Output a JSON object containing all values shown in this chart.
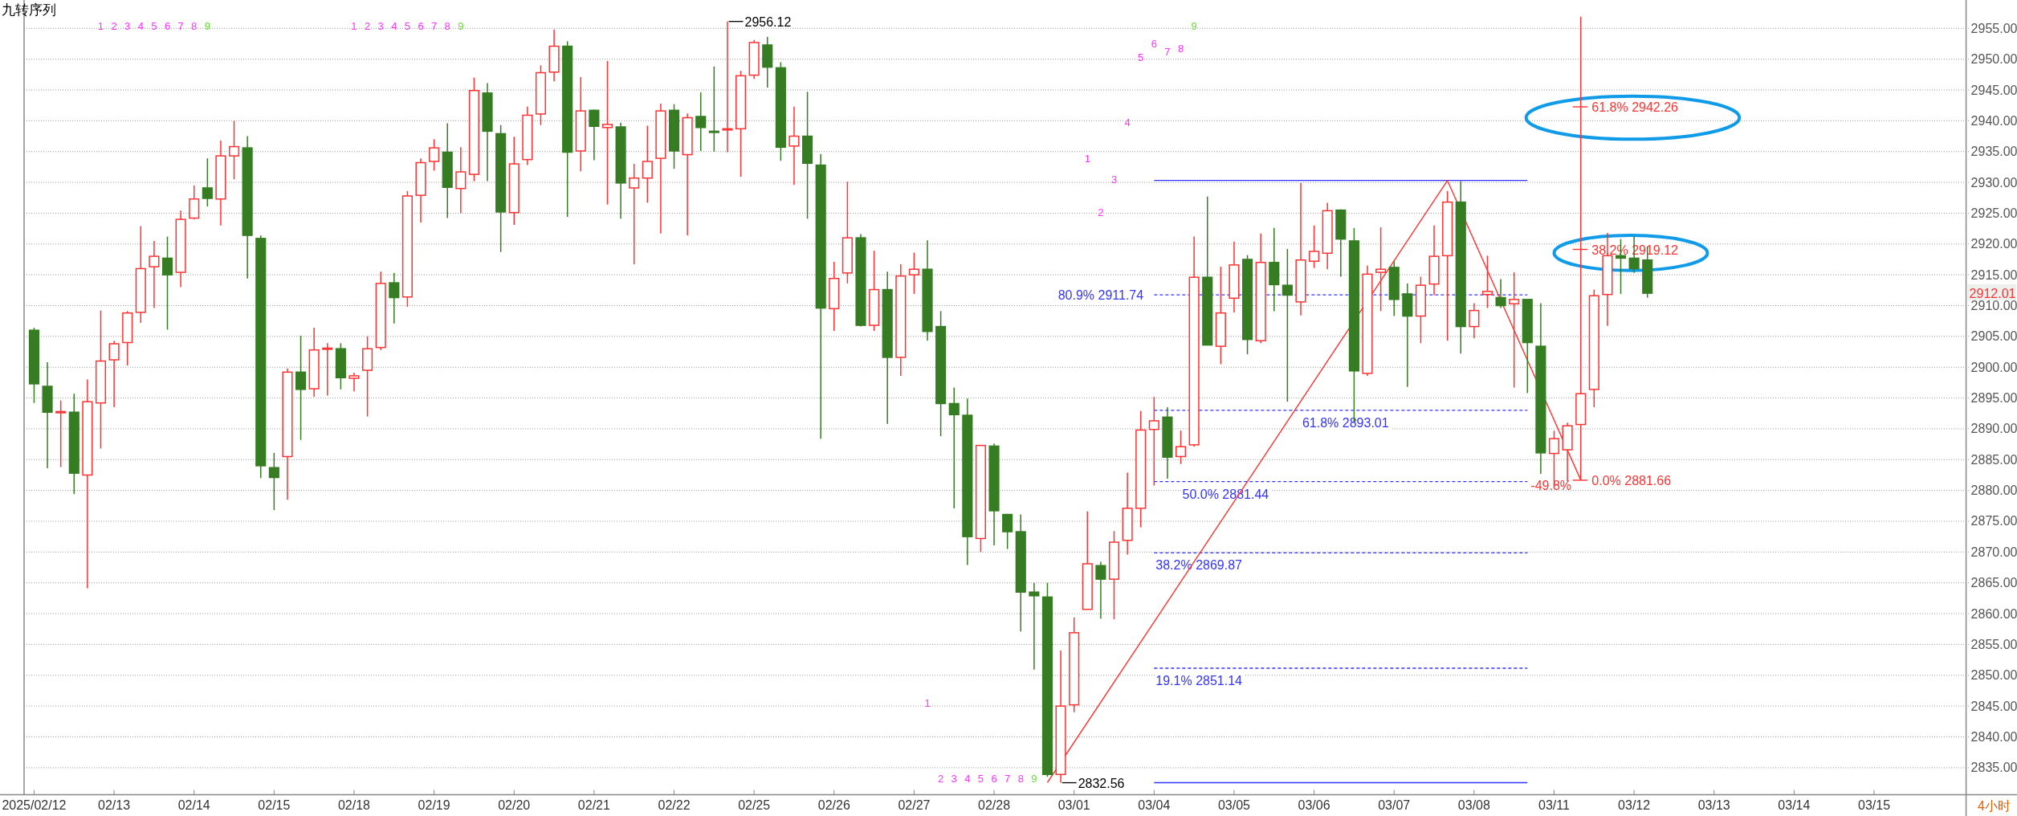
{
  "chart_data": {
    "type": "candlestick",
    "title": "九转序列",
    "categories": [
      "2025/02/12",
      null,
      null,
      null,
      null,
      null,
      "02/13",
      null,
      null,
      null,
      null,
      null,
      "02/14",
      null,
      null,
      null,
      null,
      null,
      "02/15",
      null,
      null,
      null,
      null,
      null,
      "02/18",
      null,
      null,
      null,
      null,
      null,
      "02/19",
      null,
      null,
      null,
      null,
      null,
      "02/20",
      null,
      null,
      null,
      null,
      null,
      "02/21",
      null,
      null,
      null,
      null,
      null,
      "02/22",
      null,
      null,
      null,
      null,
      null,
      "02/25",
      null,
      null,
      null,
      null,
      null,
      "02/26",
      null,
      null,
      null,
      null,
      null,
      "02/27",
      null,
      null,
      null,
      null,
      null,
      "02/28",
      null,
      null,
      null,
      null,
      null,
      "03/01",
      null,
      null,
      null,
      null,
      null,
      "03/04",
      null,
      null,
      null,
      null,
      null,
      "03/05",
      null,
      null,
      null,
      null,
      null,
      "03/06",
      null,
      null,
      null,
      null,
      null,
      "03/07",
      null,
      null,
      null,
      null,
      null,
      "03/08",
      null,
      null,
      null,
      null,
      null,
      "03/11",
      null,
      null,
      null,
      null,
      null,
      "03/12",
      null,
      null,
      null,
      null,
      null,
      "03/13",
      null,
      null,
      null,
      null,
      null,
      "03/14",
      null,
      null,
      null,
      null,
      null,
      "03/15",
      null,
      null,
      null,
      null,
      null,
      null
    ],
    "ohlc": [
      [
        2906.0,
        2906.4,
        2894.2,
        2897.3
      ],
      [
        2896.9,
        2900.8,
        2883.6,
        2892.7
      ],
      [
        2892.6,
        2894.6,
        2883.8,
        2892.8
      ],
      [
        2892.7,
        2895.7,
        2879.4,
        2882.8
      ],
      [
        2882.5,
        2898.0,
        2864.1,
        2894.4
      ],
      [
        2894.2,
        2909.2,
        2886.8,
        2901.0
      ],
      [
        2901.2,
        2904.3,
        2893.5,
        2903.8
      ],
      [
        2904.0,
        2909.1,
        2900.3,
        2908.8
      ],
      [
        2908.9,
        2922.9,
        2907.2,
        2916.0
      ],
      [
        2916.3,
        2920.5,
        2909.6,
        2918.0
      ],
      [
        2917.7,
        2921.2,
        2906.1,
        2915.0
      ],
      [
        2915.4,
        2925.4,
        2913.0,
        2924.0
      ],
      [
        2924.2,
        2929.5,
        2924.0,
        2927.3
      ],
      [
        2929.1,
        2933.9,
        2926.1,
        2927.4
      ],
      [
        2927.3,
        2936.8,
        2923.0,
        2934.3
      ],
      [
        2934.3,
        2940.0,
        2930.5,
        2935.8
      ],
      [
        2935.6,
        2937.5,
        2914.4,
        2921.4
      ],
      [
        2920.9,
        2921.4,
        2882.0,
        2884.0
      ],
      [
        2883.7,
        2886.1,
        2876.8,
        2882.1
      ],
      [
        2885.5,
        2899.8,
        2878.5,
        2899.2
      ],
      [
        2899.2,
        2905.1,
        2888.2,
        2896.4
      ],
      [
        2896.5,
        2906.4,
        2895.2,
        2902.8
      ],
      [
        2903.0,
        2903.9,
        2895.4,
        2903.1
      ],
      [
        2903.0,
        2903.9,
        2896.4,
        2898.3
      ],
      [
        2898.2,
        2899.1,
        2896.1,
        2898.6
      ],
      [
        2899.5,
        2905.0,
        2892.0,
        2903.0
      ],
      [
        2903.2,
        2915.5,
        2902.8,
        2913.6
      ],
      [
        2913.7,
        2915.3,
        2907.1,
        2911.3
      ],
      [
        2911.4,
        2928.6,
        2909.8,
        2927.8
      ],
      [
        2927.9,
        2933.9,
        2923.5,
        2933.2
      ],
      [
        2933.4,
        2937.0,
        2931.9,
        2935.6
      ],
      [
        2934.9,
        2939.6,
        2924.2,
        2929.2
      ],
      [
        2929.0,
        2935.7,
        2925.0,
        2931.7
      ],
      [
        2931.3,
        2947.0,
        2930.2,
        2944.9
      ],
      [
        2944.5,
        2946.1,
        2930.2,
        2938.3
      ],
      [
        2937.9,
        2939.3,
        2918.7,
        2925.2
      ],
      [
        2925.1,
        2937.4,
        2923.1,
        2933.0
      ],
      [
        2933.7,
        2942.3,
        2932.8,
        2940.9
      ],
      [
        2941.1,
        2949.0,
        2939.3,
        2947.8
      ],
      [
        2947.9,
        2954.8,
        2946.4,
        2952.1
      ],
      [
        2952.1,
        2952.9,
        2924.4,
        2934.9
      ],
      [
        2935.1,
        2947.1,
        2931.8,
        2941.6
      ],
      [
        2941.7,
        2941.8,
        2933.6,
        2939.1
      ],
      [
        2938.9,
        2949.7,
        2926.4,
        2939.4
      ],
      [
        2939.0,
        2939.7,
        2924.1,
        2929.9
      ],
      [
        2929.1,
        2933.0,
        2916.7,
        2930.7
      ],
      [
        2930.7,
        2939.2,
        2926.7,
        2933.4
      ],
      [
        2933.9,
        2942.8,
        2921.7,
        2941.6
      ],
      [
        2941.7,
        2942.7,
        2932.2,
        2935.1
      ],
      [
        2934.5,
        2941.2,
        2921.4,
        2940.5
      ],
      [
        2940.7,
        2944.6,
        2935.1,
        2938.9
      ],
      [
        2938.3,
        2948.8,
        2935.0,
        2938.2
      ],
      [
        2938.6,
        2956.12,
        2934.9,
        2938.7
      ],
      [
        2938.7,
        2948.1,
        2930.9,
        2947.3
      ],
      [
        2947.4,
        2953.1,
        2946.8,
        2952.7
      ],
      [
        2952.3,
        2953.6,
        2945.4,
        2948.7
      ],
      [
        2948.6,
        2949.5,
        2933.5,
        2935.7
      ],
      [
        2935.9,
        2942.3,
        2929.6,
        2937.5
      ],
      [
        2937.5,
        2944.7,
        2924.1,
        2933.1
      ],
      [
        2932.8,
        2934.6,
        2888.4,
        2909.6
      ],
      [
        2909.5,
        2917.1,
        2905.9,
        2914.4
      ],
      [
        2915.3,
        2930.1,
        2913.6,
        2921.0
      ],
      [
        2921.0,
        2921.6,
        2906.6,
        2906.8
      ],
      [
        2906.8,
        2918.9,
        2905.9,
        2912.6
      ],
      [
        2912.6,
        2915.5,
        2890.8,
        2901.6
      ],
      [
        2901.6,
        2916.7,
        2898.6,
        2914.8
      ],
      [
        2915.0,
        2918.6,
        2911.9,
        2915.9
      ],
      [
        2915.9,
        2920.6,
        2904.3,
        2905.8
      ],
      [
        2906.6,
        2909.1,
        2888.8,
        2894.1
      ],
      [
        2894.1,
        2896.7,
        2877.1,
        2892.3
      ],
      [
        2892.2,
        2894.9,
        2867.9,
        2872.5
      ],
      [
        2872.2,
        2887.4,
        2870.0,
        2887.3
      ],
      [
        2887.2,
        2887.6,
        2871.1,
        2876.7
      ],
      [
        2876.1,
        2876.2,
        2870.5,
        2873.3
      ],
      [
        2873.3,
        2876.1,
        2857.1,
        2863.5
      ],
      [
        2863.5,
        2865.0,
        2850.9,
        2862.9
      ],
      [
        2862.7,
        2865.0,
        2833.5,
        2833.9
      ],
      [
        2833.9,
        2854.0,
        2832.56,
        2845.0
      ],
      [
        2845.2,
        2859.4,
        2844.0,
        2856.9
      ],
      [
        2860.7,
        2876.6,
        2860.7,
        2868.1
      ],
      [
        2867.8,
        2868.4,
        2859.2,
        2865.6
      ],
      [
        2865.6,
        2873.4,
        2859.1,
        2871.6
      ],
      [
        2871.9,
        2882.9,
        2869.6,
        2877.1
      ],
      [
        2877.1,
        2892.9,
        2874.0,
        2889.8
      ],
      [
        2889.9,
        2895.2,
        2880.8,
        2891.3
      ],
      [
        2891.9,
        2893.5,
        2881.9,
        2885.4
      ],
      [
        2885.5,
        2889.7,
        2884.3,
        2887.1
      ],
      [
        2887.4,
        2921.2,
        2887.1,
        2914.6
      ],
      [
        2914.6,
        2927.7,
        2903.6,
        2903.6
      ],
      [
        2903.4,
        2916.3,
        2900.5,
        2908.8
      ],
      [
        2911.2,
        2920.4,
        2908.9,
        2916.6
      ],
      [
        2917.5,
        2918.2,
        2902.1,
        2904.5
      ],
      [
        2904.3,
        2921.7,
        2903.9,
        2917.0
      ],
      [
        2917.0,
        2922.6,
        2909.1,
        2913.4
      ],
      [
        2913.3,
        2919.2,
        2894.4,
        2911.7
      ],
      [
        2910.6,
        2929.9,
        2908.4,
        2917.4
      ],
      [
        2917.2,
        2923.0,
        2916.1,
        2918.8
      ],
      [
        2918.5,
        2926.7,
        2915.9,
        2925.4
      ],
      [
        2925.5,
        2925.6,
        2914.7,
        2920.8
      ],
      [
        2920.5,
        2922.6,
        2891.2,
        2899.4
      ],
      [
        2899.0,
        2916.5,
        2898.6,
        2915.1
      ],
      [
        2915.4,
        2922.7,
        2909.1,
        2915.9
      ],
      [
        2916.2,
        2917.2,
        2908.3,
        2911.0
      ],
      [
        2911.9,
        2913.6,
        2896.8,
        2908.3
      ],
      [
        2908.3,
        2914.7,
        2903.9,
        2913.3
      ],
      [
        2913.5,
        2923.0,
        2911.7,
        2918.0
      ],
      [
        2918.1,
        2928.6,
        2904.3,
        2926.8
      ],
      [
        2926.8,
        2930.2,
        2902.2,
        2906.6
      ],
      [
        2906.6,
        2910.4,
        2904.7,
        2909.2
      ],
      [
        2911.8,
        2918.1,
        2909.6,
        2912.3
      ],
      [
        2911.3,
        2914.3,
        2909.6,
        2910.0
      ],
      [
        2910.3,
        2915.4,
        2896.7,
        2911.0
      ],
      [
        2911.0,
        2911.0,
        2895.8,
        2904.0
      ],
      [
        2903.4,
        2910.4,
        2882.7,
        2886.1
      ],
      [
        2886.0,
        2889.7,
        2880.6,
        2888.4
      ],
      [
        2886.6,
        2891.0,
        2881.5,
        2890.5
      ],
      [
        2890.7,
        2956.9,
        2881.66,
        2895.7
      ],
      [
        2896.4,
        2912.6,
        2893.5,
        2911.6
      ],
      [
        2911.8,
        2921.8,
        2906.7,
        2918.1
      ],
      [
        2918.1,
        2920.8,
        2911.9,
        2917.7
      ],
      [
        2917.7,
        2921.2,
        2915.3,
        2916.0
      ],
      [
        2917.4,
        2919.6,
        2911.3,
        2912.01
      ],
      null,
      null,
      null,
      null,
      null,
      null,
      null,
      null,
      null,
      null,
      null,
      null,
      null,
      null,
      null,
      null,
      null,
      null,
      null,
      null,
      null,
      null,
      null
    ],
    "colors": [
      "#367c22",
      "#367c22",
      "#ff3333",
      "#367c22",
      "#ff3333",
      "#ff3333",
      "#ff3333",
      "#ff3333",
      "#ff3333",
      "#ff3333",
      "#367c22",
      "#ff3333",
      "#ff3333",
      "#367c22",
      "#ff3333",
      "#ff3333",
      "#367c22",
      "#367c22",
      "#367c22",
      "#ff3333",
      "#367c22",
      "#ff3333",
      "#ff3333",
      "#367c22",
      "#ff3333",
      "#ff3333",
      "#ff3333",
      "#367c22",
      "#ff3333",
      "#ff3333",
      "#ff3333",
      "#367c22",
      "#ff3333",
      "#ff3333",
      "#367c22",
      "#367c22",
      "#ff3333",
      "#ff3333",
      "#ff3333",
      "#ff3333",
      "#367c22",
      "#ff3333",
      "#367c22",
      "#ff3333",
      "#367c22",
      "#ff3333",
      "#ff3333",
      "#ff3333",
      "#367c22",
      "#ff3333",
      "#367c22",
      "#367c22",
      "#ff3333",
      "#ff3333",
      "#ff3333",
      "#367c22",
      "#367c22",
      "#ff3333",
      "#367c22",
      "#367c22",
      "#ff3333",
      "#ff3333",
      "#367c22",
      "#ff3333",
      "#367c22",
      "#ff3333",
      "#ff3333",
      "#367c22",
      "#367c22",
      "#367c22",
      "#367c22",
      "#ff3333",
      "#367c22",
      "#367c22",
      "#367c22",
      "#367c22",
      "#367c22",
      "#ff3333",
      "#ff3333",
      "#ff3333",
      "#367c22",
      "#ff3333",
      "#ff3333",
      "#ff3333",
      "#ff3333",
      "#367c22",
      "#ff3333",
      "#ff3333",
      "#367c22",
      "#ff3333",
      "#ff3333",
      "#367c22",
      "#ff3333",
      "#367c22",
      "#367c22",
      "#ff3333",
      "#ff3333",
      "#ff3333",
      "#367c22",
      "#367c22",
      "#ff3333",
      "#ff3333",
      "#367c22",
      "#367c22",
      "#ff3333",
      "#ff3333",
      "#ff3333",
      "#367c22",
      "#ff3333",
      "#ff3333",
      "#367c22",
      "#ff3333",
      "#367c22",
      "#367c22",
      "#ff3333",
      "#ff3333",
      "#ff3333",
      "#ff3333",
      "#ff3333",
      "#367c22",
      "#367c22",
      "#367c22",
      null,
      null,
      null,
      null,
      null,
      null,
      null,
      null,
      null,
      null,
      null,
      null,
      null,
      null,
      null,
      null,
      null,
      null,
      null,
      null,
      null,
      null,
      null
    ],
    "ylim": [
      2830.6,
      2959.6
    ],
    "yticks": [
      {
        "value": 2835,
        "label": "2835.00"
      },
      {
        "value": 2840,
        "label": "2840.00"
      },
      {
        "value": 2845,
        "label": "2845.00"
      },
      {
        "value": 2850,
        "label": "2850.00"
      },
      {
        "value": 2855,
        "label": "2855.00"
      },
      {
        "value": 2860,
        "label": "2860.00"
      },
      {
        "value": 2865,
        "label": "2865.00"
      },
      {
        "value": 2870,
        "label": "2870.00"
      },
      {
        "value": 2875,
        "label": "2875.00"
      },
      {
        "value": 2880,
        "label": "2880.00"
      },
      {
        "value": 2885,
        "label": "2885.00"
      },
      {
        "value": 2890,
        "label": "2890.00"
      },
      {
        "value": 2895,
        "label": "2895.00"
      },
      {
        "value": 2900,
        "label": "2900.00"
      },
      {
        "value": 2905,
        "label": "2905.00"
      },
      {
        "value": 2910,
        "label": "2910.00"
      },
      {
        "value": 2915,
        "label": "2915.00"
      },
      {
        "value": 2920,
        "label": "2920.00"
      },
      {
        "value": 2925,
        "label": "2925.00"
      },
      {
        "value": 2930,
        "label": "2930.00"
      },
      {
        "value": 2935,
        "label": "2935.00"
      },
      {
        "value": 2940,
        "label": "2940.00"
      },
      {
        "value": 2945,
        "label": "2945.00"
      },
      {
        "value": 2950,
        "label": "2950.00"
      },
      {
        "value": 2955,
        "label": "2955.00"
      }
    ],
    "grid": "y",
    "series": [
      {
        "type": "line",
        "values": [
          null,
          null,
          null,
          null,
          null,
          null,
          null,
          null,
          null,
          null,
          null,
          null,
          null,
          null,
          null,
          null,
          null,
          null,
          null,
          null,
          null,
          null,
          null,
          null,
          null,
          null,
          null,
          null,
          null,
          null,
          null,
          null,
          null,
          null,
          null,
          null,
          null,
          null,
          null,
          null,
          null,
          null,
          null,
          null,
          null,
          null,
          null,
          null,
          null,
          null,
          null,
          null,
          null,
          null,
          null,
          null,
          null,
          null,
          null,
          null,
          null,
          null,
          null,
          null,
          null,
          null,
          null,
          null,
          null,
          null,
          null,
          null,
          null,
          null,
          null,
          null,
          2832.6,
          null,
          null,
          null,
          null,
          null,
          null,
          null,
          null,
          null,
          null,
          null,
          null,
          null,
          null,
          null,
          null,
          null,
          null,
          null,
          null,
          null,
          null,
          null,
          null,
          null,
          null,
          null,
          null,
          null,
          2930.3,
          null,
          null,
          null,
          null,
          null,
          null,
          null,
          null,
          null,
          2881.7,
          null,
          null,
          null,
          null,
          null,
          null,
          null,
          null,
          null,
          null,
          null,
          null,
          null,
          null,
          null,
          null,
          null,
          null,
          null,
          null,
          null,
          null,
          null,
          null,
          null,
          null,
          null,
          null
        ],
        "color": "#ff3333",
        "line_style": "solid"
      }
    ],
    "ref_lines": [
      {
        "axis": "y",
        "value": 2930.32,
        "label": null,
        "color": "#3333ff",
        "line_style": "solid"
      },
      {
        "axis": "y",
        "value": 2911.74,
        "label": "80.9% 2911.74",
        "color": "#3333ff",
        "line_style": "dashed"
      },
      {
        "axis": "y",
        "value": 2893.01,
        "label": "61.8% 2893.01",
        "color": "#3333ff",
        "line_style": "dashed"
      },
      {
        "axis": "y",
        "value": 2881.44,
        "label": "50.0% 2881.44",
        "color": "#3333ff",
        "line_style": "dashed"
      },
      {
        "axis": "y",
        "value": 2869.87,
        "label": "38.2% 2869.87",
        "color": "#3333ff",
        "line_style": "dashed"
      },
      {
        "axis": "y",
        "value": 2851.14,
        "label": "19.1% 2851.14",
        "color": "#3333ff",
        "line_style": "dashed"
      },
      {
        "axis": "y",
        "value": 2832.56,
        "label": null,
        "color": "#3333ff",
        "line_style": "solid"
      },
      {
        "axis": "y",
        "value": 2942.26,
        "label": "61.8% 2942.26",
        "color": "#ff3333",
        "line_style": "solid"
      },
      {
        "axis": "y",
        "value": 2919.12,
        "label": "38.2% 2919.12",
        "color": "#ff3333",
        "line_style": "solid"
      },
      {
        "axis": "y",
        "value": 2881.66,
        "label": "0.0% 2881.66",
        "color": "#ff3333",
        "line_style": "solid"
      }
    ],
    "annotations": [
      "1",
      "2",
      "3",
      "4",
      "5",
      "6",
      "7",
      "8",
      "9",
      "1",
      "2",
      "3",
      "4",
      "5",
      "6",
      "7",
      "8",
      "9",
      "1",
      "2",
      "3",
      "4",
      "5",
      "6",
      "7",
      "8",
      "9",
      "1",
      "2",
      "3",
      "4",
      "5",
      "6",
      "7",
      "8",
      "9",
      "-49.8%",
      "2956.12",
      "2832.56",
      "2912.01",
      "4小时"
    ]
  }
}
